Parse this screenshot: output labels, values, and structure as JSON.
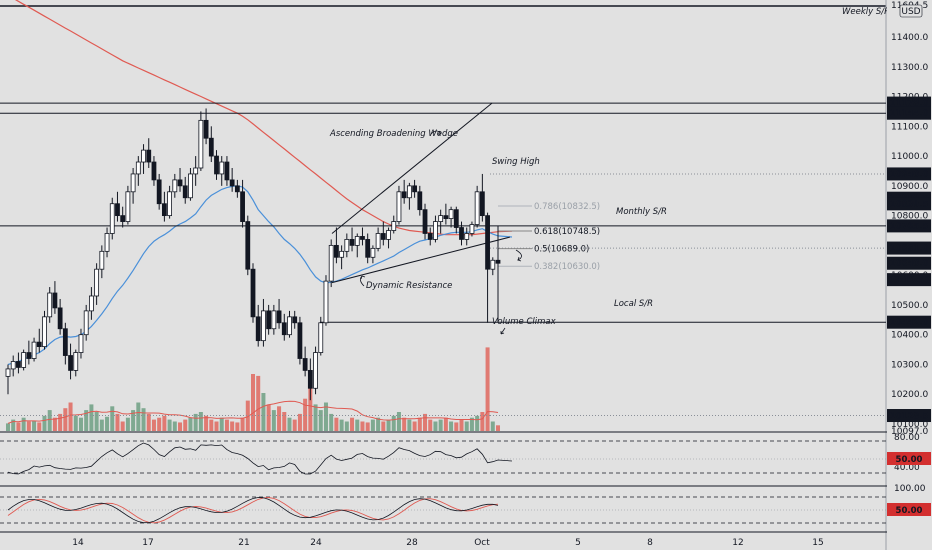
{
  "chart_data": {
    "type": "candlestick",
    "timeframe_hint": "4H",
    "currency": "USD",
    "price_axis": {
      "ticks": [
        "11400.0",
        "11300.0",
        "11200.0",
        "11100.0",
        "11000.0",
        "10900.0",
        "10800.0",
        "10700.0",
        "10600.0",
        "10500.0",
        "10400.0",
        "10300.0",
        "10200.0",
        "10100.0"
      ],
      "top_clipped_label": "11604.5",
      "bottom_clipped_label": "10097.0",
      "range": [
        10080,
        11610
      ]
    },
    "price_tags": [
      {
        "label": "11178.0",
        "price": 11178,
        "style": "dark"
      },
      {
        "label": "11144.0",
        "price": 11144,
        "style": "dark"
      },
      {
        "label": "10940.0",
        "price": 10940,
        "style": "dark"
      },
      {
        "label": "10858.5",
        "price": 10858.5,
        "style": "dark"
      },
      {
        "label": "10839.5",
        "price": 10839.5,
        "style": "dark"
      },
      {
        "label": "10765.5",
        "price": 10765.5,
        "style": "dark"
      },
      {
        "label": "10691.0",
        "price": 10691,
        "style": "dark"
      },
      {
        "label": "10640.0",
        "price": 10640,
        "style": "dark"
      },
      {
        "label": "03:19:53",
        "price": 10585,
        "style": "dark"
      },
      {
        "label": "10442.0",
        "price": 10442,
        "style": "dark"
      },
      {
        "label": "10128.5",
        "price": 10128.5,
        "style": "dark"
      }
    ],
    "x_axis": {
      "labels": [
        "14",
        "17",
        "21",
        "24",
        "28",
        "Oct",
        "5",
        "8",
        "12",
        "15"
      ]
    },
    "levels": [
      {
        "name": "Weekly S/R",
        "price": 11604
      },
      {
        "name": "Monthly S/R",
        "price": 10765.5
      },
      {
        "name": "Local S/R",
        "price": 10442
      }
    ],
    "fib_levels": [
      {
        "label": "0.786(10832.5)",
        "price": 10832.5
      },
      {
        "label": "0.618(10748.5)",
        "price": 10748.5
      },
      {
        "label": "0.5(10689.0)",
        "price": 10689
      },
      {
        "label": "0.382(10630.0)",
        "price": 10630
      }
    ],
    "annotations": [
      "Weekly S/R",
      "Ascending Broadening Wedge",
      "Swing High",
      "Monthly S/R",
      "Dynamic Resistance",
      "Local S/R",
      "Volume Climax"
    ],
    "candles": [
      [
        10260,
        10300,
        10200,
        10285
      ],
      [
        10285,
        10330,
        10260,
        10310
      ],
      [
        10310,
        10340,
        10270,
        10290
      ],
      [
        10290,
        10350,
        10280,
        10340
      ],
      [
        10340,
        10380,
        10300,
        10320
      ],
      [
        10320,
        10390,
        10310,
        10375
      ],
      [
        10375,
        10420,
        10340,
        10360
      ],
      [
        10360,
        10480,
        10350,
        10460
      ],
      [
        10460,
        10560,
        10440,
        10540
      ],
      [
        10540,
        10580,
        10470,
        10490
      ],
      [
        10490,
        10520,
        10400,
        10420
      ],
      [
        10420,
        10440,
        10300,
        10330
      ],
      [
        10330,
        10370,
        10250,
        10280
      ],
      [
        10280,
        10350,
        10260,
        10340
      ],
      [
        10340,
        10420,
        10320,
        10400
      ],
      [
        10400,
        10500,
        10380,
        10480
      ],
      [
        10480,
        10560,
        10450,
        10530
      ],
      [
        10530,
        10640,
        10500,
        10620
      ],
      [
        10620,
        10700,
        10590,
        10680
      ],
      [
        10680,
        10760,
        10660,
        10740
      ],
      [
        10740,
        10860,
        10720,
        10840
      ],
      [
        10840,
        10880,
        10780,
        10800
      ],
      [
        10800,
        10830,
        10760,
        10780
      ],
      [
        10780,
        10900,
        10770,
        10880
      ],
      [
        10880,
        10960,
        10840,
        10940
      ],
      [
        10940,
        11000,
        10900,
        10980
      ],
      [
        10980,
        11040,
        10940,
        11020
      ],
      [
        11020,
        11060,
        10960,
        10980
      ],
      [
        10980,
        11000,
        10900,
        10920
      ],
      [
        10920,
        10940,
        10820,
        10840
      ],
      [
        10840,
        10880,
        10780,
        10800
      ],
      [
        10800,
        10900,
        10790,
        10880
      ],
      [
        10880,
        10940,
        10860,
        10920
      ],
      [
        10920,
        10960,
        10880,
        10900
      ],
      [
        10900,
        10930,
        10840,
        10860
      ],
      [
        10860,
        10960,
        10850,
        10940
      ],
      [
        10940,
        11000,
        10900,
        10960
      ],
      [
        10960,
        11150,
        10950,
        11120
      ],
      [
        11120,
        11160,
        11040,
        11060
      ],
      [
        11060,
        11100,
        10980,
        11000
      ],
      [
        11000,
        11020,
        10920,
        10940
      ],
      [
        10940,
        11000,
        10900,
        10980
      ],
      [
        10980,
        11000,
        10900,
        10920
      ],
      [
        10920,
        10960,
        10880,
        10900
      ],
      [
        10900,
        10920,
        10860,
        10880
      ],
      [
        10880,
        10920,
        10760,
        10780
      ],
      [
        10780,
        10800,
        10600,
        10620
      ],
      [
        10620,
        10640,
        10440,
        10460
      ],
      [
        10460,
        10500,
        10360,
        10380
      ],
      [
        10380,
        10520,
        10360,
        10480
      ],
      [
        10480,
        10500,
        10400,
        10420
      ],
      [
        10420,
        10500,
        10400,
        10480
      ],
      [
        10480,
        10520,
        10420,
        10440
      ],
      [
        10440,
        10470,
        10380,
        10400
      ],
      [
        10400,
        10480,
        10390,
        10460
      ],
      [
        10460,
        10480,
        10420,
        10440
      ],
      [
        10440,
        10460,
        10300,
        10320
      ],
      [
        10320,
        10360,
        10260,
        10280
      ],
      [
        10280,
        10320,
        10180,
        10220
      ],
      [
        10220,
        10360,
        10200,
        10340
      ],
      [
        10340,
        10460,
        10330,
        10440
      ],
      [
        10440,
        10600,
        10430,
        10580
      ],
      [
        10580,
        10720,
        10560,
        10700
      ],
      [
        10700,
        10760,
        10640,
        10660
      ],
      [
        10660,
        10700,
        10620,
        10680
      ],
      [
        10680,
        10740,
        10660,
        10720
      ],
      [
        10720,
        10760,
        10680,
        10700
      ],
      [
        10700,
        10740,
        10660,
        10730
      ],
      [
        10730,
        10760,
        10700,
        10720
      ],
      [
        10720,
        10740,
        10640,
        10660
      ],
      [
        10660,
        10700,
        10640,
        10690
      ],
      [
        10690,
        10760,
        10680,
        10740
      ],
      [
        10740,
        10780,
        10700,
        10720
      ],
      [
        10720,
        10760,
        10690,
        10750
      ],
      [
        10750,
        10800,
        10740,
        10780
      ],
      [
        10780,
        10900,
        10770,
        10880
      ],
      [
        10880,
        10920,
        10840,
        10860
      ],
      [
        10860,
        10910,
        10820,
        10900
      ],
      [
        10900,
        10920,
        10860,
        10880
      ],
      [
        10880,
        10900,
        10800,
        10820
      ],
      [
        10820,
        10840,
        10720,
        10740
      ],
      [
        10740,
        10760,
        10700,
        10720
      ],
      [
        10720,
        10800,
        10710,
        10780
      ],
      [
        10780,
        10820,
        10740,
        10800
      ],
      [
        10800,
        10840,
        10770,
        10790
      ],
      [
        10790,
        10830,
        10760,
        10820
      ],
      [
        10820,
        10830,
        10740,
        10760
      ],
      [
        10760,
        10780,
        10700,
        10720
      ],
      [
        10720,
        10760,
        10700,
        10740
      ],
      [
        10740,
        10780,
        10730,
        10770
      ],
      [
        10770,
        10900,
        10760,
        10880
      ],
      [
        10880,
        10940,
        10780,
        10800
      ],
      [
        10800,
        10810,
        10440,
        10620
      ],
      [
        10620,
        10660,
        10600,
        10650
      ],
      [
        10650,
        10660,
        10630,
        10640
      ]
    ],
    "volume": [
      8,
      12,
      9,
      14,
      10,
      11,
      9,
      16,
      22,
      14,
      18,
      24,
      30,
      16,
      14,
      22,
      28,
      20,
      12,
      15,
      26,
      18,
      10,
      14,
      22,
      30,
      24,
      18,
      12,
      14,
      16,
      12,
      10,
      9,
      12,
      14,
      18,
      20,
      16,
      12,
      10,
      14,
      12,
      10,
      9,
      14,
      32,
      60,
      58,
      40,
      28,
      22,
      26,
      20,
      14,
      12,
      18,
      34,
      50,
      28,
      22,
      30,
      18,
      14,
      12,
      10,
      14,
      12,
      10,
      9,
      12,
      14,
      10,
      12,
      16,
      20,
      14,
      12,
      10,
      14,
      18,
      12,
      10,
      12,
      14,
      10,
      9,
      12,
      10,
      14,
      16,
      20,
      88,
      10,
      6
    ],
    "ma_blue": [
      10300,
      10305,
      10310,
      10318,
      10325,
      10332,
      10340,
      10352,
      10370,
      10384,
      10392,
      10394,
      10392,
      10394,
      10400,
      10412,
      10428,
      10448,
      10470,
      10494,
      10522,
      10546,
      10566,
      10590,
      10616,
      10644,
      10672,
      10696,
      10714,
      10726,
      10736,
      10748,
      10762,
      10772,
      10780,
      10792,
      10806,
      10830,
      10852,
      10868,
      10878,
      10888,
      10894,
      10898,
      10900,
      10896,
      10880,
      10852,
      10820,
      10800,
      10780,
      10762,
      10740,
      10720,
      10706,
      10690,
      10670,
      10646,
      10618,
      10594,
      10580,
      10574,
      10576,
      10580,
      10586,
      10594,
      10602,
      10610,
      10618,
      10624,
      10632,
      10640,
      10648,
      10656,
      10664,
      10676,
      10686,
      10696,
      10706,
      10714,
      10718,
      10722,
      10728,
      10734,
      10738,
      10742,
      10744,
      10744,
      10744,
      10746,
      10752,
      10756,
      10746,
      10738,
      10732
    ],
    "ma_red": [
      11540,
      11530,
      11520,
      11510,
      11500,
      11490,
      11480,
      11470,
      11460,
      11450,
      11440,
      11430,
      11420,
      11410,
      11400,
      11390,
      11380,
      11370,
      11360,
      11350,
      11340,
      11330,
      11320,
      11312,
      11304,
      11296,
      11288,
      11280,
      11272,
      11264,
      11256,
      11248,
      11240,
      11232,
      11224,
      11216,
      11208,
      11200,
      11192,
      11184,
      11176,
      11168,
      11160,
      11152,
      11144,
      11134,
      11122,
      11108,
      11094,
      11080,
      11066,
      11052,
      11038,
      11024,
      11010,
      10996,
      10982,
      10968,
      10954,
      10940,
      10926,
      10912,
      10898,
      10884,
      10870,
      10856,
      10844,
      10832,
      10820,
      10810,
      10800,
      10790,
      10780,
      10772,
      10764,
      10758,
      10754,
      10750,
      10748,
      10746,
      10744,
      10742,
      10740,
      10738,
      10736,
      10736,
      10736,
      10736,
      10736,
      10736,
      10738,
      10740,
      10742,
      10744,
      10746
    ],
    "rsi_panel": {
      "axis_ticks": [
        "80.00",
        "50.00",
        "40.00"
      ],
      "tag": "50.00"
    },
    "stoch_panel": {
      "axis_ticks": [
        "100.00",
        "50.00"
      ],
      "tag": "50.00"
    }
  },
  "colors": {
    "background": "#e1e1e1",
    "up": "#ffffff",
    "down": "#131722",
    "candle_border": "#131722",
    "vol_up": "#7fa991",
    "vol_down": "#e07a72",
    "ma_blue": "#4a90d9",
    "ma_red": "#e05a52",
    "tag_bg": "#131722",
    "tag_red": "#d32f2f",
    "tag_grey": "#555b66"
  }
}
